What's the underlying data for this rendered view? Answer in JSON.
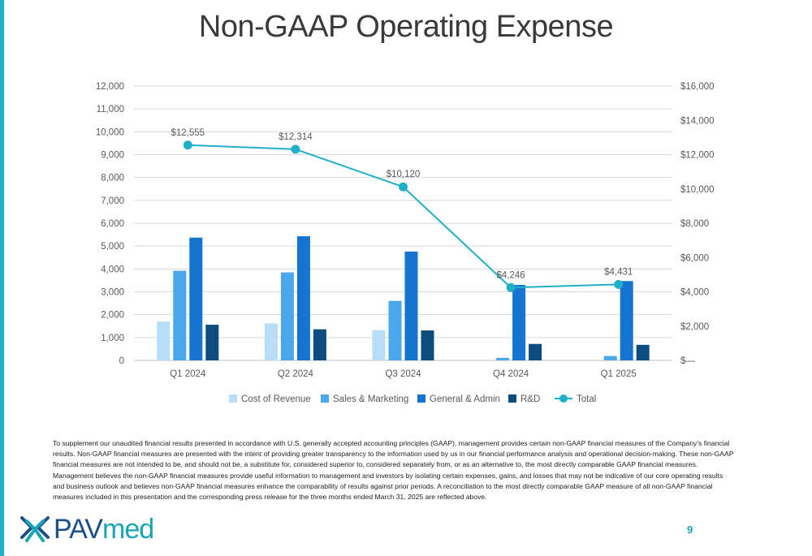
{
  "title": "Non-GAAP Operating Expense",
  "page_number": "9",
  "logo": {
    "text_main": "PAV",
    "text_accent": "med",
    "icon": "pavmed-logo-mark"
  },
  "disclaimer": "To supplement our unaudited financial results presented in accordance with U.S. generally accepted accounting principles (GAAP), management provides certain non-GAAP financial measures of the Company’s financial results.  Non-GAAP financial measures are presented with the intent of providing greater transparency to the information used by us in our financial performance analysis and operational decision-making. These non-GAAP financial measures are not intended to be, and should not be, a substitute for, considered superior to, considered separately from, or as an alternative to, the most directly comparable GAAP financial measures. Management believes the non-GAAP financial measures provide useful information to management and investors by isolating certain expenses, gains, and losses that may not be indicative of our core operating results and business outlook and believes non-GAAP financial measures enhance the comparability of results against prior periods. A reconciliation to the most directly comparable GAAP measure of all non-GAAP financial measures included in this presentation and the corresponding press release for the three months ended March 31, 2025 are reflected above.",
  "colors": {
    "accent": "#1fb0c8",
    "cost": "#b8ddf6",
    "sales": "#4aa7ec",
    "ga": "#1574cf",
    "rd": "#0e4c80",
    "total": "#1fb0c8"
  },
  "chart_data": {
    "type": "bar",
    "categories": [
      "Q1 2024",
      "Q2 2024",
      "Q3 2024",
      "Q4 2024",
      "Q1 2025"
    ],
    "series": [
      {
        "name": "Cost of Revenue",
        "values": [
          1700,
          1620,
          1320,
          0,
          0
        ],
        "axis": "left",
        "kind": "bar"
      },
      {
        "name": "Sales & Marketing",
        "values": [
          3920,
          3850,
          2600,
          110,
          190
        ],
        "axis": "left",
        "kind": "bar"
      },
      {
        "name": "General & Admin",
        "values": [
          5370,
          5430,
          4760,
          3300,
          3470
        ],
        "axis": "left",
        "kind": "bar"
      },
      {
        "name": "R&D",
        "values": [
          1560,
          1360,
          1310,
          720,
          680
        ],
        "axis": "left",
        "kind": "bar"
      },
      {
        "name": "Total",
        "values": [
          12555,
          12314,
          10120,
          4246,
          4431
        ],
        "axis": "right",
        "kind": "line",
        "labels": [
          "$12,555",
          "$12,314",
          "$10,120",
          "$4,246",
          "$4,431"
        ]
      }
    ],
    "left_axis": {
      "min": 0,
      "max": 12000,
      "step": 1000,
      "tick_labels": [
        "0",
        "1,000",
        "2,000",
        "3,000",
        "4,000",
        "5,000",
        "6,000",
        "7,000",
        "8,000",
        "9,000",
        "10,000",
        "11,000",
        "12,000"
      ]
    },
    "right_axis": {
      "min": 0,
      "max": 16000,
      "step": 2000,
      "tick_labels": [
        "$—",
        "$2,000",
        "$4,000",
        "$6,000",
        "$8,000",
        "$10,000",
        "$12,000",
        "$14,000",
        "$16,000"
      ]
    },
    "grid": true,
    "legend_position": "bottom"
  }
}
